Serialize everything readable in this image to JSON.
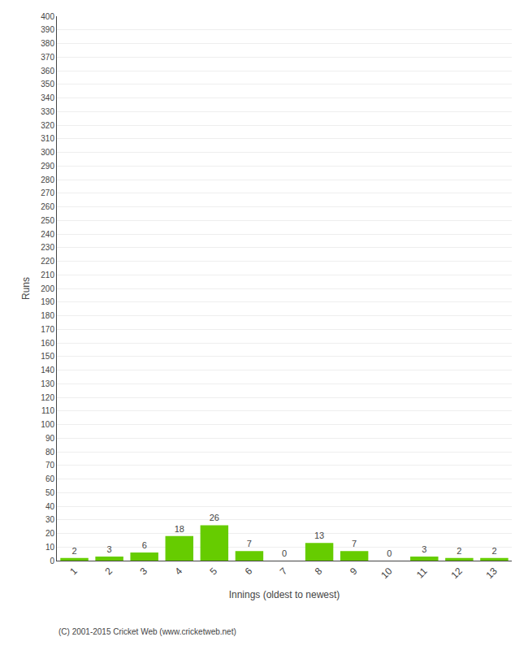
{
  "chart_data": {
    "type": "bar",
    "xlabel": "Innings (oldest to newest)",
    "ylabel": "Runs",
    "categories": [
      "1",
      "2",
      "3",
      "4",
      "5",
      "6",
      "7",
      "8",
      "9",
      "10",
      "11",
      "12",
      "13"
    ],
    "values": [
      2,
      3,
      6,
      18,
      26,
      7,
      0,
      13,
      7,
      0,
      3,
      2,
      2
    ],
    "color": "#66cc00",
    "ylim": [
      0,
      400
    ],
    "yticks": [
      0,
      10,
      20,
      30,
      40,
      50,
      60,
      70,
      80,
      90,
      100,
      110,
      120,
      130,
      140,
      150,
      160,
      170,
      180,
      190,
      200,
      210,
      220,
      230,
      240,
      250,
      260,
      270,
      280,
      290,
      300,
      310,
      320,
      330,
      340,
      350,
      360,
      370,
      380,
      390,
      400
    ],
    "grid": true,
    "data_labels": true,
    "annotations": [
      "(C) 2001-2015 Cricket Web (www.cricketweb.net)"
    ]
  }
}
